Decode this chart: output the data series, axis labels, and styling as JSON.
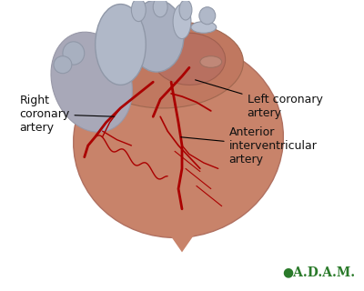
{
  "bg_color": "#ffffff",
  "heart_color": "#c8836a",
  "heart_shadow_color": "#b07060",
  "aorta_color": "#a0a8b8",
  "artery_color": "#aa0000",
  "label_fontsize": 9,
  "label_color": "#111111",
  "adam_color": "#2a7a2a",
  "labels": {
    "left_coronary": "Left coronary\nartery",
    "right_coronary": "Right\ncoronary\nartery",
    "anterior": "Anterior\ninterventricular\nartery",
    "adam": "●A.D.A.M."
  }
}
